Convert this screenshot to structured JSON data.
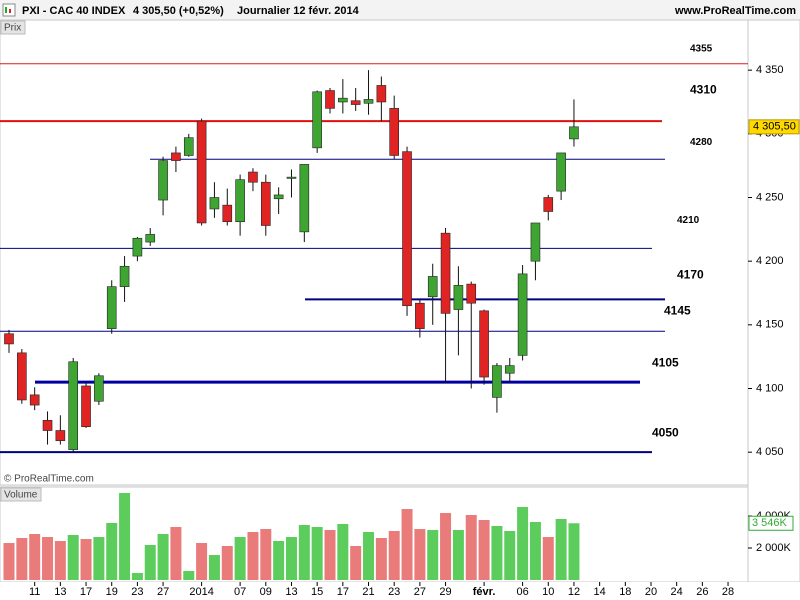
{
  "header": {
    "symbol": "PXI - CAC 40 INDEX",
    "quote": "4 305,50 (+0,52%)",
    "period": "Journalier  12 févr. 2014",
    "site": "www.ProRealTime.com"
  },
  "chart_data": {
    "type": "candlestick",
    "label": "Prix",
    "copyright": "© ProRealTime.com",
    "categories": [
      null,
      null,
      "11",
      null,
      "13",
      null,
      "17",
      null,
      "19",
      null,
      "23",
      null,
      "27",
      null,
      null,
      "2014",
      null,
      null,
      "07",
      null,
      "09",
      null,
      "13",
      null,
      "15",
      null,
      "17",
      null,
      "21",
      null,
      "23",
      null,
      "27",
      null,
      "29",
      null,
      null,
      "févr.",
      null,
      null,
      "06",
      null,
      "10",
      null,
      "12",
      null,
      "14",
      null,
      "18",
      null,
      "20",
      null,
      "24",
      null,
      "26",
      null,
      "28"
    ],
    "open": [
      4143,
      4128,
      4095,
      4075,
      4067,
      4052,
      4102,
      4090,
      4147,
      4180,
      4204,
      4215,
      4248,
      4285,
      4283,
      4310,
      4241,
      4244,
      4231,
      4270,
      4262,
      4249,
      4265,
      4223,
      4289,
      4334,
      4325,
      4326,
      4324,
      4338,
      4320,
      4286,
      4167,
      4172,
      4222,
      4162,
      4182,
      4161,
      4093,
      4112,
      4126,
      4200,
      4250,
      4255,
      4296,
      null,
      null,
      null,
      null,
      null,
      null,
      null,
      null,
      null,
      null,
      null,
      null
    ],
    "high": [
      4146,
      4131,
      4101,
      4082,
      4079,
      4124,
      4104,
      4112,
      4185,
      4204,
      4219,
      4226,
      4282,
      4290,
      4300,
      4312,
      4262,
      4257,
      4268,
      4273,
      4268,
      4258,
      4272,
      4276,
      4334,
      4336,
      4343,
      4336,
      4350,
      4345,
      4330,
      4290,
      4170,
      4198,
      4226,
      4196,
      4184,
      4162,
      4120,
      4124,
      4197,
      4230,
      4252,
      4285,
      4327,
      null,
      null,
      null,
      null,
      null,
      null,
      null,
      null,
      null,
      null,
      null,
      null
    ],
    "low": [
      4128,
      4088,
      4083,
      4056,
      4056,
      4050,
      4069,
      4087,
      4143,
      4168,
      4200,
      4212,
      4236,
      4270,
      4282,
      4228,
      4234,
      4228,
      4220,
      4255,
      4220,
      4237,
      4250,
      4215,
      4285,
      4316,
      4316,
      4318,
      4315,
      4310,
      4280,
      4157,
      4140,
      4150,
      4104,
      4126,
      4100,
      4103,
      4081,
      4105,
      4122,
      4185,
      4232,
      4248,
      4290,
      null,
      null,
      null,
      null,
      null,
      null,
      null,
      null,
      null,
      null,
      null,
      null
    ],
    "close": [
      4135,
      4091,
      4087,
      4067,
      4059,
      4121,
      4070,
      4110,
      4180,
      4196,
      4218,
      4221,
      4279,
      4279,
      4297,
      4230,
      4250,
      4231,
      4264,
      4262,
      4228,
      4252,
      4266,
      4276,
      4333,
      4320,
      4328,
      4323,
      4327,
      4325,
      4283,
      4165,
      4147,
      4188,
      4159,
      4181,
      4167,
      4109,
      4118,
      4118,
      4190,
      4230,
      4239,
      4285,
      4305.5,
      null,
      null,
      null,
      null,
      null,
      null,
      null,
      null,
      null,
      null,
      null,
      null
    ],
    "up_color": "#3ea532",
    "down_color": "#e02424",
    "ylim": [
      4036,
      4389
    ],
    "yticks": [
      {
        "value": 4050,
        "label": "4 050"
      },
      {
        "value": 4100,
        "label": "4 100"
      },
      {
        "value": 4150,
        "label": "4 150"
      },
      {
        "value": 4200,
        "label": "4 200"
      },
      {
        "value": 4250,
        "label": "4 250"
      },
      {
        "value": 4300,
        "label": "4 300"
      },
      {
        "value": 4350,
        "label": "4 350"
      }
    ],
    "last_price": {
      "value": 4305.5,
      "label": "4 305,50"
    },
    "levels": [
      4355,
      4310,
      4280,
      4210,
      4170,
      4145,
      4105,
      4050
    ],
    "level_colors": [
      "#d02020",
      "#e01010",
      "#000080",
      "#000080",
      "#000080",
      "#000080",
      "#0000a0",
      "#000080"
    ],
    "volume": {
      "label": "Volume",
      "values": [
        2312,
        2625,
        2875,
        2687,
        2437,
        2812,
        2562,
        2687,
        3562,
        5437,
        437,
        2187,
        2875,
        3312,
        562,
        2312,
        1562,
        2125,
        2687,
        3000,
        3187,
        2437,
        2687,
        3437,
        3312,
        3125,
        3500,
        2125,
        3000,
        2625,
        3062,
        4437,
        3187,
        3125,
        4187,
        3125,
        4062,
        3750,
        3375,
        3062,
        4562,
        3625,
        2687,
        3812,
        3546,
        null,
        null,
        null,
        null,
        null,
        null,
        null,
        null,
        null,
        null,
        null,
        null
      ],
      "up_color": "#5ccd5c",
      "down_color": "#ea7b7b",
      "ylim": [
        0,
        5750
      ],
      "yticks": [
        {
          "value": 2000,
          "label": "2 000K"
        },
        {
          "value": 4000,
          "label": "4 000K"
        }
      ],
      "last": {
        "value": 3546,
        "label": "3 546K"
      }
    }
  }
}
